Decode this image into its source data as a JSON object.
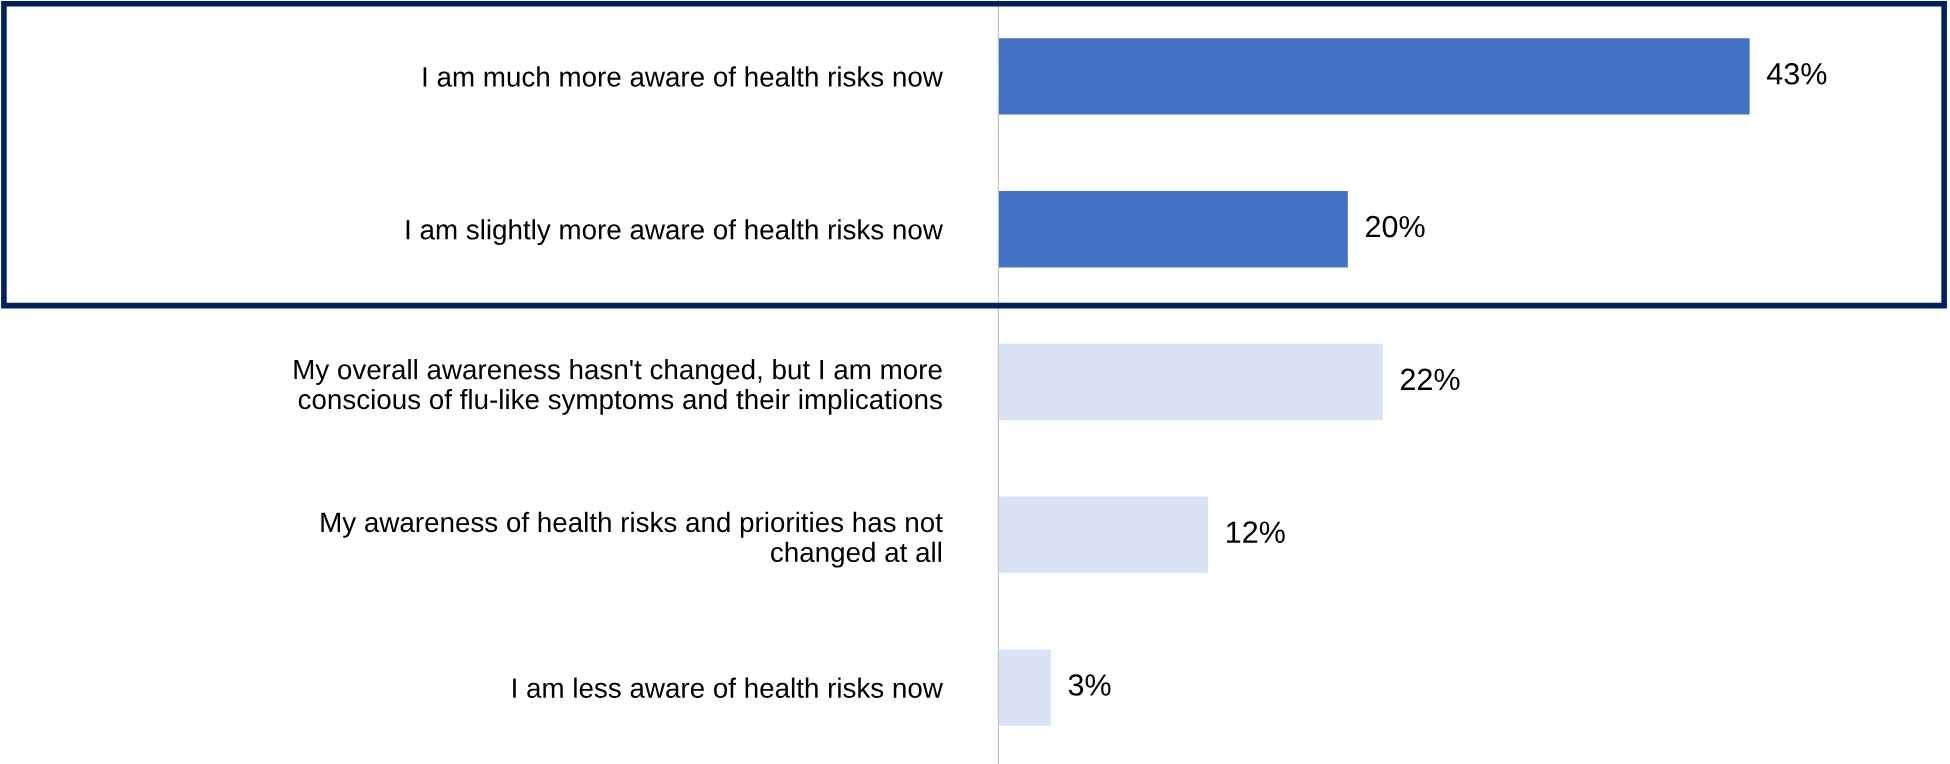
{
  "chart_data": {
    "type": "bar",
    "orientation": "horizontal",
    "categories": [
      "I am much more aware of health risks now",
      "I am slightly more aware of health risks now",
      "My overall awareness hasn't changed, but I am more\nconscious of flu-like symptoms and their implications",
      "My awareness of health risks and priorities has not\nchanged at all",
      "I am less aware of health risks now"
    ],
    "values": [
      43,
      20,
      22,
      12,
      3
    ],
    "colors": [
      "#4472c4",
      "#4472c4",
      "#dae3f3",
      "#dae3f3",
      "#dae3f3"
    ],
    "value_labels": [
      "43%",
      "20%",
      "22%",
      "12%",
      "3%"
    ],
    "grid": false,
    "legend": false
  }
}
